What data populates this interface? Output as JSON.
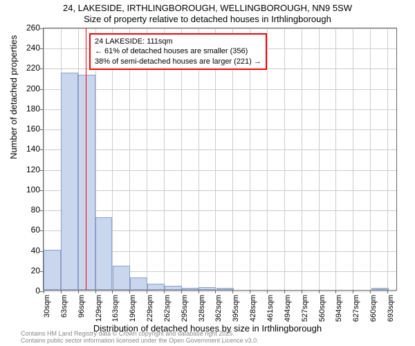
{
  "chart": {
    "type": "histogram",
    "title_line1": "24, LAKESIDE, IRTHLINGBOROUGH, WELLINGBOROUGH, NN9 5SW",
    "title_line2": "Size of property relative to detached houses in Irthlingborough",
    "x_axis_label": "Distribution of detached houses by size in Irthlingborough",
    "y_axis_label": "Number of detached properties",
    "title_fontsize": 13,
    "label_fontsize": 13,
    "tick_fontsize": 12,
    "x_tick_labels": [
      "30sqm",
      "63sqm",
      "96sqm",
      "129sqm",
      "163sqm",
      "196sqm",
      "229sqm",
      "262sqm",
      "295sqm",
      "328sqm",
      "362sqm",
      "395sqm",
      "428sqm",
      "461sqm",
      "494sqm",
      "527sqm",
      "560sqm",
      "594sqm",
      "627sqm",
      "660sqm",
      "693sqm"
    ],
    "y_ticks": [
      0,
      20,
      40,
      60,
      80,
      100,
      120,
      140,
      160,
      180,
      200,
      220,
      240,
      260
    ],
    "ylim": [
      0,
      260
    ],
    "xlim": [
      30,
      710
    ],
    "bar_color": "#cad6ed",
    "bar_border_color": "#8aa0c8",
    "background_color": "#ffffff",
    "grid_color": "#cccccc",
    "axis_color": "#666666",
    "marker_color": "#ff0000",
    "marker_x": 111,
    "bins": [
      {
        "x": 30,
        "count": 40
      },
      {
        "x": 63,
        "count": 215
      },
      {
        "x": 96,
        "count": 213
      },
      {
        "x": 129,
        "count": 72
      },
      {
        "x": 163,
        "count": 24
      },
      {
        "x": 196,
        "count": 12
      },
      {
        "x": 229,
        "count": 6
      },
      {
        "x": 262,
        "count": 4
      },
      {
        "x": 295,
        "count": 2
      },
      {
        "x": 328,
        "count": 3
      },
      {
        "x": 362,
        "count": 2
      },
      {
        "x": 395,
        "count": 0
      },
      {
        "x": 428,
        "count": 0
      },
      {
        "x": 461,
        "count": 0
      },
      {
        "x": 494,
        "count": 0
      },
      {
        "x": 527,
        "count": 0
      },
      {
        "x": 560,
        "count": 0
      },
      {
        "x": 594,
        "count": 0
      },
      {
        "x": 627,
        "count": 0
      },
      {
        "x": 660,
        "count": 2
      },
      {
        "x": 693,
        "count": 0
      }
    ],
    "bin_width": 33,
    "annotation": {
      "line1": "24 LAKESIDE: 111sqm",
      "line2": "← 61% of detached houses are smaller (356)",
      "line3": "38% of semi-detached houses are larger (221) →",
      "border_color": "#ff0000",
      "fontsize": 11,
      "x_offset": 120,
      "y_top": 48
    },
    "footer": {
      "line1": "Contains HM Land Registry data © Crown copyright and database right 2025.",
      "line2": "Contains public sector information licensed under the Open Government Licence v3.0.",
      "color": "#888888",
      "fontsize": 9
    }
  }
}
